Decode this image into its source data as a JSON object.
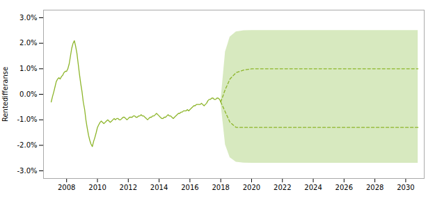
{
  "chart_data": {
    "type": "line",
    "ylabel": "Rentedifferanse",
    "xlim": [
      2006.5,
      2031.2
    ],
    "xticks": [
      2008,
      2010,
      2012,
      2014,
      2016,
      2018,
      2020,
      2022,
      2024,
      2026,
      2028,
      2030
    ],
    "ylim": [
      -0.033,
      0.033
    ],
    "yticks": [
      {
        "value": -0.03,
        "label": "-3.0%"
      },
      {
        "value": -0.02,
        "label": "-2.0%"
      },
      {
        "value": -0.01,
        "label": "-1.0%"
      },
      {
        "value": 0.0,
        "label": "0.0%"
      },
      {
        "value": 0.01,
        "label": "1.0%"
      },
      {
        "value": 0.02,
        "label": "2.0%"
      },
      {
        "value": 0.03,
        "label": "3.0%"
      }
    ],
    "grid": false,
    "series": [
      {
        "type": "area",
        "color": "#7ab52a",
        "x": [
          2018.0,
          2018.3,
          2018.6,
          2019.0,
          2019.5,
          2020.0,
          2020.5,
          2021.0,
          2022.0,
          2023.0,
          2024.0,
          2025.0,
          2026.0,
          2027.0,
          2028.0,
          2029.0,
          2030.0,
          2030.8
        ],
        "lower": [
          -0.003,
          -0.01977,
          -0.02482,
          -0.02656,
          -0.02694,
          -0.02699,
          -0.027,
          -0.027,
          -0.027,
          -0.027,
          -0.027,
          -0.027,
          -0.027,
          -0.027,
          -0.027,
          -0.027,
          -0.027,
          -0.027
        ],
        "upper": [
          -0.003,
          0.0166,
          0.02246,
          0.02449,
          0.02493,
          0.02499,
          0.025,
          0.025,
          0.025,
          0.025,
          0.025,
          0.025,
          0.025,
          0.025,
          0.025,
          0.025,
          0.025,
          0.025
        ]
      },
      {
        "type": "line",
        "color": "#8db52a",
        "line_style": "dashed",
        "x": [
          2018.0,
          2018.3,
          2018.6,
          2019.0,
          2019.5,
          2020.0,
          2020.5,
          2021.0,
          2022.0,
          2023.0,
          2024.0,
          2025.0,
          2026.0,
          2027.0,
          2028.0,
          2029.0,
          2030.0,
          2030.8
        ],
        "values": [
          -0.003,
          0.002,
          0.006,
          0.0085,
          0.0095,
          0.01,
          0.01,
          0.01,
          0.01,
          0.01,
          0.01,
          0.01,
          0.01,
          0.01,
          0.01,
          0.01,
          0.01,
          0.01
        ]
      },
      {
        "type": "line",
        "color": "#8db52a",
        "line_style": "dashed",
        "x": [
          2018.0,
          2018.3,
          2018.6,
          2019.0,
          2019.5,
          2020.0,
          2020.5,
          2021.0,
          2022.0,
          2023.0,
          2024.0,
          2025.0,
          2026.0,
          2027.0,
          2028.0,
          2029.0,
          2030.0,
          2030.8
        ],
        "values": [
          -0.003,
          -0.007,
          -0.011,
          -0.013,
          -0.013,
          -0.013,
          -0.013,
          -0.013,
          -0.013,
          -0.013,
          -0.013,
          -0.013,
          -0.013,
          -0.013,
          -0.013,
          -0.013,
          -0.013,
          -0.013
        ]
      },
      {
        "type": "line",
        "color": "#8db52a",
        "line_style": "solid",
        "x": [
          2007.0,
          2007.08,
          2007.17,
          2007.25,
          2007.33,
          2007.42,
          2007.5,
          2007.58,
          2007.67,
          2007.75,
          2007.83,
          2007.92,
          2008.0,
          2008.08,
          2008.17,
          2008.25,
          2008.33,
          2008.42,
          2008.5,
          2008.58,
          2008.67,
          2008.75,
          2008.83,
          2008.92,
          2009.0,
          2009.08,
          2009.17,
          2009.25,
          2009.33,
          2009.42,
          2009.5,
          2009.58,
          2009.67,
          2009.75,
          2009.83,
          2009.92,
          2010.0,
          2010.08,
          2010.17,
          2010.25,
          2010.33,
          2010.42,
          2010.5,
          2010.58,
          2010.67,
          2010.75,
          2010.83,
          2010.92,
          2011.0,
          2011.08,
          2011.17,
          2011.25,
          2011.33,
          2011.42,
          2011.5,
          2011.58,
          2011.67,
          2011.75,
          2011.83,
          2011.92,
          2012.0,
          2012.08,
          2012.17,
          2012.25,
          2012.33,
          2012.42,
          2012.5,
          2012.58,
          2012.67,
          2012.75,
          2012.83,
          2012.92,
          2013.0,
          2013.08,
          2013.17,
          2013.25,
          2013.33,
          2013.42,
          2013.5,
          2013.58,
          2013.67,
          2013.75,
          2013.83,
          2013.92,
          2014.0,
          2014.08,
          2014.17,
          2014.25,
          2014.33,
          2014.42,
          2014.5,
          2014.58,
          2014.67,
          2014.75,
          2014.83,
          2014.92,
          2015.0,
          2015.08,
          2015.17,
          2015.25,
          2015.33,
          2015.42,
          2015.5,
          2015.58,
          2015.67,
          2015.75,
          2015.83,
          2015.92,
          2016.0,
          2016.08,
          2016.17,
          2016.25,
          2016.33,
          2016.42,
          2016.5,
          2016.58,
          2016.67,
          2016.75,
          2016.83,
          2016.92,
          2017.0,
          2017.08,
          2017.17,
          2017.25,
          2017.33,
          2017.42,
          2017.5,
          2017.58,
          2017.67,
          2017.75,
          2017.83,
          2017.92,
          2018.0
        ],
        "values": [
          -0.003,
          -0.001,
          0.001,
          0.003,
          0.005,
          0.006,
          0.0065,
          0.006,
          0.007,
          0.0075,
          0.0085,
          0.009,
          0.009,
          0.01,
          0.012,
          0.015,
          0.018,
          0.02,
          0.021,
          0.019,
          0.016,
          0.012,
          0.008,
          0.004,
          0.001,
          -0.003,
          -0.006,
          -0.01,
          -0.013,
          -0.016,
          -0.018,
          -0.0195,
          -0.0205,
          -0.0185,
          -0.017,
          -0.015,
          -0.013,
          -0.012,
          -0.011,
          -0.0105,
          -0.011,
          -0.0115,
          -0.011,
          -0.0105,
          -0.01,
          -0.0105,
          -0.011,
          -0.0105,
          -0.01,
          -0.0095,
          -0.01,
          -0.0095,
          -0.0095,
          -0.01,
          -0.01,
          -0.0095,
          -0.009,
          -0.009,
          -0.0095,
          -0.01,
          -0.0095,
          -0.009,
          -0.009,
          -0.009,
          -0.0085,
          -0.0085,
          -0.009,
          -0.009,
          -0.0085,
          -0.0085,
          -0.008,
          -0.0085,
          -0.0085,
          -0.009,
          -0.0095,
          -0.01,
          -0.0095,
          -0.009,
          -0.009,
          -0.0085,
          -0.0085,
          -0.008,
          -0.0075,
          -0.008,
          -0.0085,
          -0.009,
          -0.0095,
          -0.0095,
          -0.009,
          -0.009,
          -0.0085,
          -0.008,
          -0.0085,
          -0.0085,
          -0.009,
          -0.0095,
          -0.009,
          -0.0085,
          -0.008,
          -0.0075,
          -0.0075,
          -0.007,
          -0.007,
          -0.0065,
          -0.0065,
          -0.0065,
          -0.006,
          -0.0065,
          -0.006,
          -0.0055,
          -0.005,
          -0.0045,
          -0.0045,
          -0.004,
          -0.004,
          -0.004,
          -0.004,
          -0.0035,
          -0.004,
          -0.0045,
          -0.004,
          -0.0035,
          -0.0025,
          -0.002,
          -0.002,
          -0.0015,
          -0.0015,
          -0.002,
          -0.002,
          -0.0015,
          -0.0015,
          -0.002,
          -0.003
        ]
      }
    ]
  }
}
